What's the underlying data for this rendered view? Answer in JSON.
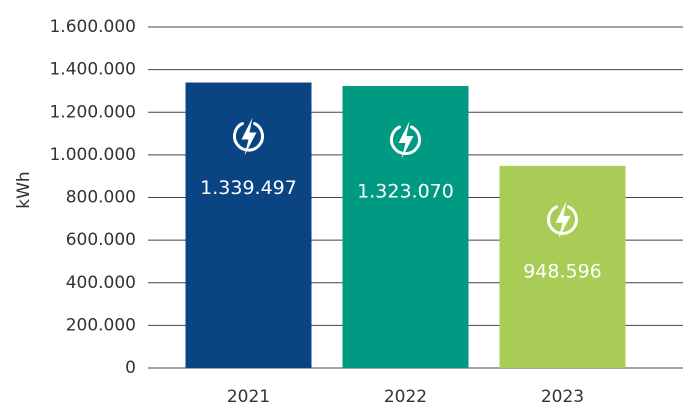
{
  "chart_data": {
    "type": "bar",
    "y_label": "kWh",
    "categories": [
      "2021",
      "2022",
      "2023"
    ],
    "values": [
      1339497,
      1323070,
      948596
    ],
    "value_labels": [
      "1.339.497",
      "1.323.070",
      "948.596"
    ],
    "colors": [
      "#0b4482",
      "#009a82",
      "#a8cc55"
    ],
    "ylim": [
      0,
      1600000
    ],
    "yticks": [
      0,
      {
        "value": 200000,
        "label": "200.000"
      },
      {
        "value": 400000,
        "label": "400.000"
      },
      {
        "value": 600000,
        "label": "600.000"
      },
      {
        "value": 800000,
        "label": "800.000"
      },
      {
        "value": 1000000,
        "label": "1.000.000"
      },
      {
        "value": 1200000,
        "label": "1.200.000"
      },
      {
        "value": 1400000,
        "label": "1.400.000"
      },
      {
        "value": 1600000,
        "label": "1.600.000"
      }
    ],
    "grid": true
  }
}
